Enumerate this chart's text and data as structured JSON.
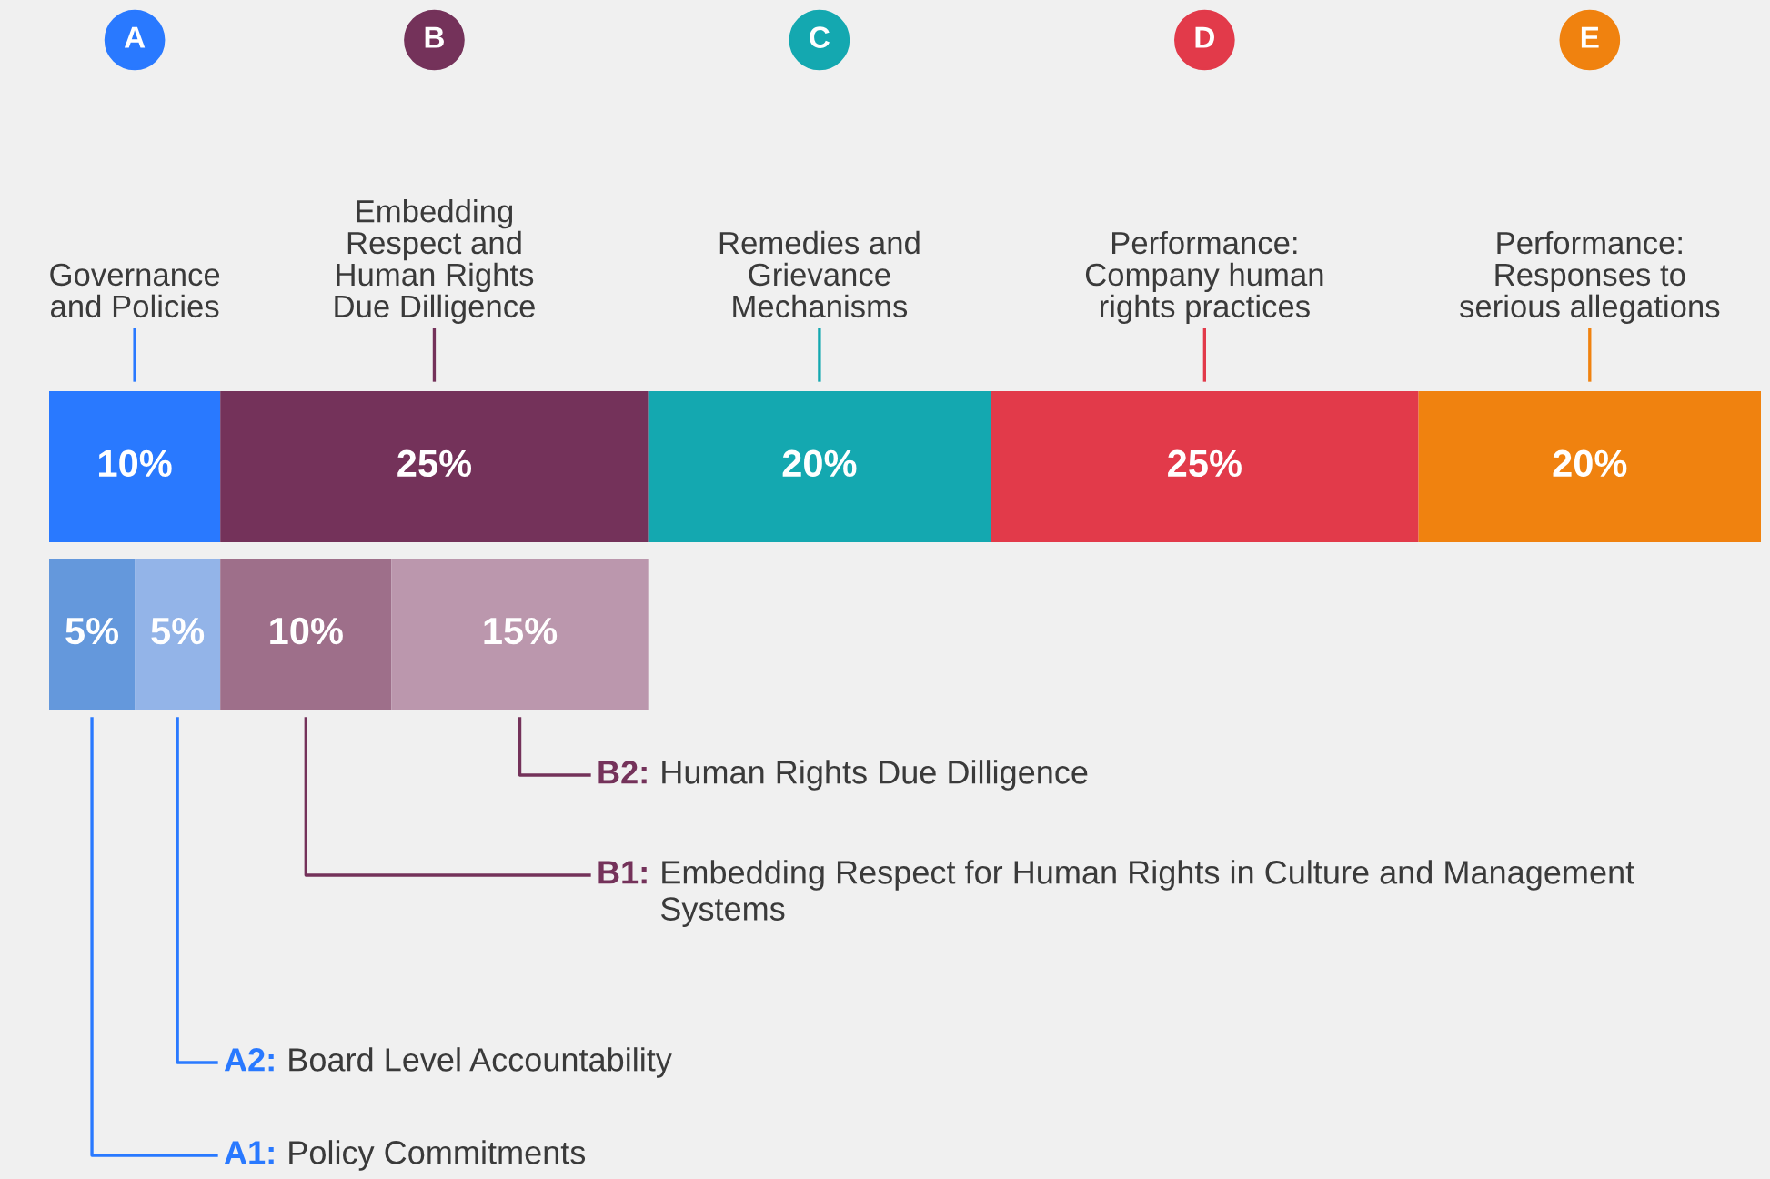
{
  "chart_data": {
    "type": "bar",
    "orientation": "horizontal",
    "stacked": true,
    "tick_labels": false,
    "categories": [
      null,
      null
    ],
    "annotations": [
      "A",
      "B",
      "C",
      "D",
      "E"
    ],
    "series": [
      {
        "name": "Governance\nand Policies",
        "color": "#2979ff",
        "values": [
          10,
          null
        ],
        "value_labels": [
          "10%",
          null
        ]
      },
      {
        "name": "Embedding\nRespect and\nHuman Rights\nDue Dilligence",
        "color": "#74325a",
        "values": [
          25,
          null
        ],
        "value_labels": [
          "25%",
          null
        ]
      },
      {
        "name": "Remedies and\nGrievance\nMechanisms",
        "color": "#14a8b0",
        "values": [
          20,
          null
        ],
        "value_labels": [
          "20%",
          null
        ]
      },
      {
        "name": "Performance:\nCompany human\nrights practices",
        "color": "#e23a4a",
        "values": [
          25,
          null
        ],
        "value_labels": [
          "25%",
          null
        ]
      },
      {
        "name": "Performance:\nResponses to\nserious allegations",
        "color": "#f0820f",
        "values": [
          20,
          null
        ],
        "value_labels": [
          "20%",
          null
        ]
      },
      {
        "name": "A1: Policy Commitments",
        "color": "#6498dc",
        "values": [
          null,
          5
        ],
        "value_labels": [
          null,
          "5%"
        ]
      },
      {
        "name": "A2: Board Level Accountability",
        "color": "#93b4e8",
        "values": [
          null,
          5
        ],
        "value_labels": [
          null,
          "5%"
        ]
      },
      {
        "name": "B1: Embedding Respect for Human Rights in Culture and Management Systems",
        "color": "#9e6f8a",
        "values": [
          null,
          10
        ],
        "value_labels": [
          null,
          "10%"
        ]
      },
      {
        "name": "B2: Human Rights Due Dilligence",
        "color": "#bb97ad",
        "values": [
          null,
          15
        ],
        "value_labels": [
          null,
          "15%"
        ]
      }
    ]
  }
}
